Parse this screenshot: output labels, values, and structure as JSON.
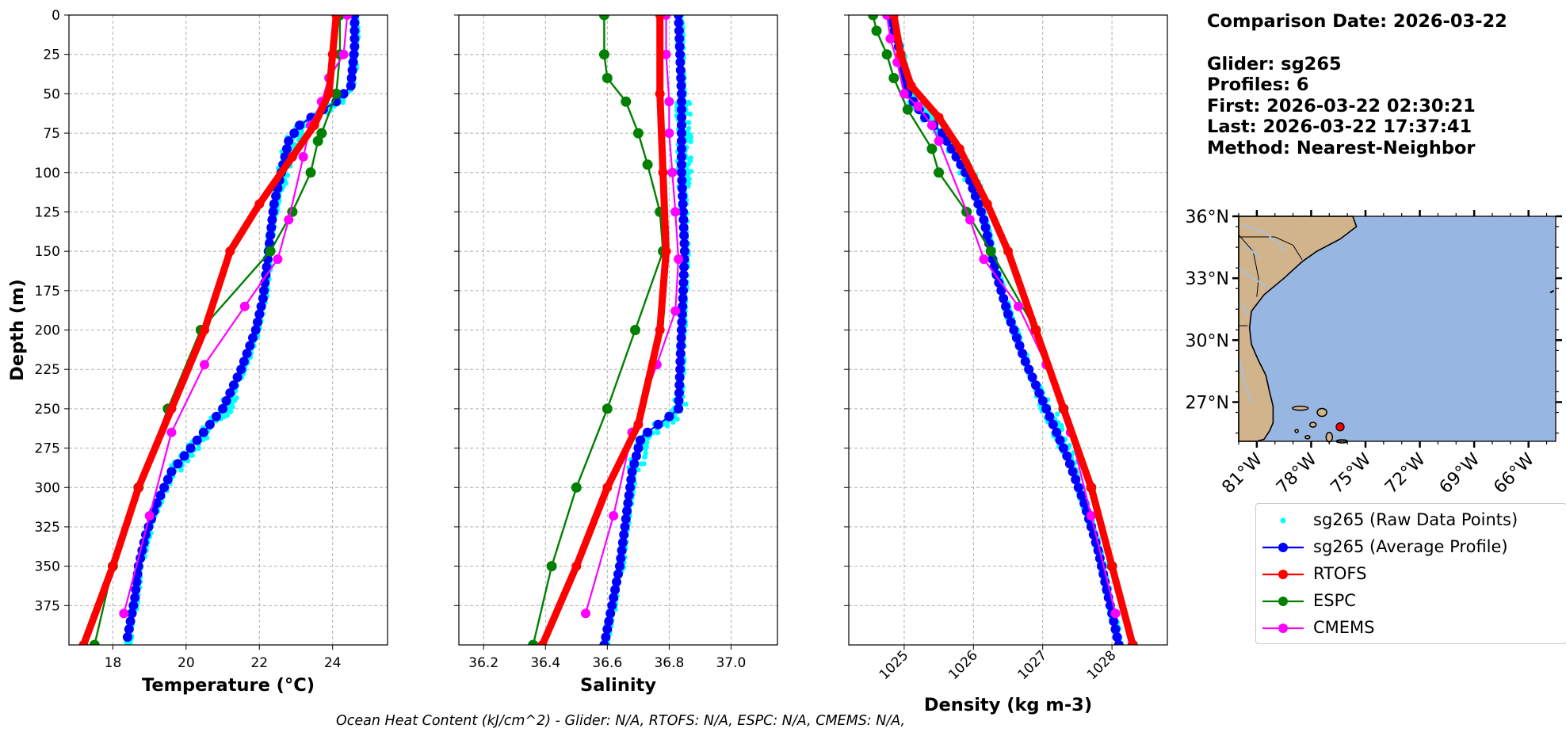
{
  "info": {
    "comparison_date": "Comparison Date: 2026-03-22",
    "glider": "Glider: sg265",
    "profiles": "Profiles: 6",
    "first": "First: 2026-03-22 02:30:21",
    "last": "Last: 2026-03-22 17:37:41",
    "method": "Method: Nearest-Neighbor"
  },
  "footer": "Ocean Heat Content (kJ/cm^2) - Glider: N/A,  RTOFS: N/A,  ESPC: N/A,  CMEMS: N/A,",
  "colors": {
    "raw": "#00ffff",
    "avg": "#0000ff",
    "rtofs": "#ff0000",
    "espc": "#008000",
    "cmems": "#ff00ff",
    "ocean": "#97b6e1",
    "land": "#d2b48c",
    "grid": "#b0b0b0"
  },
  "legend": [
    {
      "key": "raw",
      "label": "sg265 (Raw Data Points)"
    },
    {
      "key": "avg",
      "label": "sg265 (Average Profile)"
    },
    {
      "key": "rtofs",
      "label": "RTOFS"
    },
    {
      "key": "espc",
      "label": "ESPC"
    },
    {
      "key": "cmems",
      "label": "CMEMS"
    }
  ],
  "chart_data": [
    {
      "type": "line",
      "xlabel": "Temperature (°C)",
      "ylabel": "Depth (m)",
      "xlim": [
        16.8,
        25.5
      ],
      "ylim": [
        400,
        0
      ],
      "xticks": [
        18,
        20,
        22,
        24
      ],
      "yticks": [
        0,
        25,
        50,
        75,
        100,
        125,
        150,
        175,
        200,
        225,
        250,
        275,
        300,
        325,
        350,
        375
      ],
      "grid": true,
      "series": [
        {
          "key": "avg",
          "name": "sg265 (Average Profile)",
          "points": [
            [
              24.6,
              0
            ],
            [
              24.6,
              20
            ],
            [
              24.5,
              45
            ],
            [
              24.1,
              55
            ],
            [
              23.6,
              62
            ],
            [
              23.1,
              70
            ],
            [
              22.8,
              80
            ],
            [
              22.7,
              90
            ],
            [
              22.6,
              100
            ],
            [
              22.5,
              110
            ],
            [
              22.4,
              120
            ],
            [
              22.35,
              130
            ],
            [
              22.3,
              140
            ],
            [
              22.2,
              160
            ],
            [
              22.1,
              180
            ],
            [
              21.9,
              200
            ],
            [
              21.5,
              225
            ],
            [
              21.0,
              250
            ],
            [
              20.3,
              270
            ],
            [
              19.6,
              290
            ],
            [
              19.2,
              310
            ],
            [
              18.9,
              330
            ],
            [
              18.7,
              350
            ],
            [
              18.6,
              370
            ],
            [
              18.4,
              395
            ]
          ]
        },
        {
          "key": "rtofs",
          "name": "RTOFS",
          "points": [
            [
              24.1,
              0
            ],
            [
              24.0,
              25
            ],
            [
              23.9,
              50
            ],
            [
              23.5,
              70
            ],
            [
              22.9,
              90
            ],
            [
              22.0,
              120
            ],
            [
              21.2,
              150
            ],
            [
              20.5,
              200
            ],
            [
              19.6,
              250
            ],
            [
              18.7,
              300
            ],
            [
              18.0,
              350
            ],
            [
              17.2,
              400
            ]
          ]
        },
        {
          "key": "espc",
          "name": "ESPC",
          "points": [
            [
              24.2,
              0
            ],
            [
              24.2,
              25
            ],
            [
              24.1,
              50
            ],
            [
              23.7,
              75
            ],
            [
              23.6,
              80
            ],
            [
              23.4,
              100
            ],
            [
              22.9,
              125
            ],
            [
              22.3,
              150
            ],
            [
              20.4,
              200
            ],
            [
              19.5,
              250
            ],
            [
              18.7,
              300
            ],
            [
              18.0,
              350
            ],
            [
              17.5,
              400
            ]
          ]
        },
        {
          "key": "cmems",
          "name": "CMEMS",
          "points": [
            [
              24.4,
              0
            ],
            [
              24.3,
              25
            ],
            [
              23.9,
              40
            ],
            [
              23.7,
              55
            ],
            [
              23.4,
              70
            ],
            [
              23.2,
              90
            ],
            [
              22.8,
              130
            ],
            [
              22.5,
              155
            ],
            [
              21.6,
              185
            ],
            [
              20.5,
              222
            ],
            [
              19.6,
              265
            ],
            [
              19.0,
              318
            ],
            [
              18.3,
              380
            ]
          ]
        }
      ],
      "raw_key": "raw"
    },
    {
      "type": "line",
      "xlabel": "Salinity",
      "xlim": [
        36.12,
        37.15
      ],
      "ylim": [
        400,
        0
      ],
      "xticks": [
        36.2,
        36.4,
        36.6,
        36.8,
        37.0
      ],
      "xtick_labels": [
        "36.2",
        "36.4",
        "36.6",
        "36.8",
        "37.0"
      ],
      "grid": true,
      "series": [
        {
          "key": "avg",
          "name": "sg265 (Average Profile)",
          "points": [
            [
              36.83,
              0
            ],
            [
              36.84,
              50
            ],
            [
              36.84,
              100
            ],
            [
              36.85,
              150
            ],
            [
              36.84,
              200
            ],
            [
              36.83,
              250
            ],
            [
              36.8,
              255
            ],
            [
              36.75,
              262
            ],
            [
              36.71,
              268
            ],
            [
              36.68,
              290
            ],
            [
              36.66,
              320
            ],
            [
              36.64,
              350
            ],
            [
              36.61,
              380
            ],
            [
              36.59,
              400
            ]
          ]
        },
        {
          "key": "rtofs",
          "name": "RTOFS",
          "points": [
            [
              36.77,
              0
            ],
            [
              36.77,
              50
            ],
            [
              36.78,
              100
            ],
            [
              36.79,
              150
            ],
            [
              36.77,
              200
            ],
            [
              36.7,
              260
            ],
            [
              36.6,
              300
            ],
            [
              36.5,
              350
            ],
            [
              36.39,
              400
            ]
          ]
        },
        {
          "key": "espc",
          "name": "ESPC",
          "points": [
            [
              36.59,
              0
            ],
            [
              36.59,
              25
            ],
            [
              36.6,
              40
            ],
            [
              36.66,
              55
            ],
            [
              36.7,
              75
            ],
            [
              36.73,
              95
            ],
            [
              36.77,
              125
            ],
            [
              36.78,
              150
            ],
            [
              36.69,
              200
            ],
            [
              36.6,
              250
            ],
            [
              36.5,
              300
            ],
            [
              36.42,
              350
            ],
            [
              36.36,
              400
            ]
          ]
        },
        {
          "key": "cmems",
          "name": "CMEMS",
          "points": [
            [
              36.79,
              0
            ],
            [
              36.79,
              25
            ],
            [
              36.8,
              55
            ],
            [
              36.8,
              75
            ],
            [
              36.81,
              100
            ],
            [
              36.82,
              125
            ],
            [
              36.83,
              155
            ],
            [
              36.82,
              188
            ],
            [
              36.76,
              222
            ],
            [
              36.68,
              265
            ],
            [
              36.62,
              318
            ],
            [
              36.53,
              380
            ]
          ]
        }
      ],
      "raw_key": "raw"
    },
    {
      "type": "line",
      "xlabel": "Density (kg m-3)",
      "xlim": [
        1024.2,
        1028.8
      ],
      "ylim": [
        400,
        0
      ],
      "xticks": [
        1025,
        1026,
        1027,
        1028
      ],
      "grid": true,
      "series": [
        {
          "key": "avg",
          "name": "sg265 (Average Profile)",
          "points": [
            [
              1024.8,
              0
            ],
            [
              1024.95,
              25
            ],
            [
              1025.05,
              50
            ],
            [
              1025.3,
              65
            ],
            [
              1025.55,
              75
            ],
            [
              1025.75,
              90
            ],
            [
              1025.95,
              105
            ],
            [
              1026.15,
              130
            ],
            [
              1026.3,
              160
            ],
            [
              1026.5,
              190
            ],
            [
              1026.75,
              220
            ],
            [
              1027.05,
              250
            ],
            [
              1027.35,
              280
            ],
            [
              1027.6,
              310
            ],
            [
              1027.8,
              340
            ],
            [
              1027.95,
              370
            ],
            [
              1028.1,
              400
            ]
          ]
        },
        {
          "key": "rtofs",
          "name": "RTOFS",
          "points": [
            [
              1024.85,
              0
            ],
            [
              1024.95,
              25
            ],
            [
              1025.1,
              45
            ],
            [
              1025.5,
              65
            ],
            [
              1025.8,
              85
            ],
            [
              1026.2,
              120
            ],
            [
              1026.5,
              150
            ],
            [
              1026.9,
              200
            ],
            [
              1027.3,
              250
            ],
            [
              1027.7,
              300
            ],
            [
              1028.0,
              350
            ],
            [
              1028.3,
              400
            ]
          ]
        },
        {
          "key": "espc",
          "name": "ESPC",
          "points": [
            [
              1024.55,
              0
            ],
            [
              1024.6,
              10
            ],
            [
              1024.75,
              25
            ],
            [
              1024.85,
              40
            ],
            [
              1025.05,
              60
            ],
            [
              1025.4,
              85
            ],
            [
              1025.5,
              100
            ],
            [
              1025.9,
              125
            ],
            [
              1026.25,
              150
            ],
            [
              1026.9,
              200
            ],
            [
              1027.3,
              250
            ],
            [
              1027.7,
              300
            ],
            [
              1028.0,
              350
            ],
            [
              1028.3,
              400
            ]
          ]
        },
        {
          "key": "cmems",
          "name": "CMEMS",
          "points": [
            [
              1024.75,
              0
            ],
            [
              1024.8,
              15
            ],
            [
              1024.9,
              30
            ],
            [
              1025.0,
              50
            ],
            [
              1025.2,
              58
            ],
            [
              1025.4,
              70
            ],
            [
              1025.5,
              80
            ],
            [
              1025.95,
              130
            ],
            [
              1026.15,
              155
            ],
            [
              1026.65,
              185
            ],
            [
              1027.05,
              222
            ],
            [
              1027.4,
              265
            ],
            [
              1027.7,
              318
            ],
            [
              1028.05,
              380
            ]
          ]
        }
      ],
      "raw_key": "raw"
    }
  ],
  "map": {
    "lat_labels": [
      "36°N",
      "33°N",
      "30°N",
      "27°N"
    ],
    "lat_values": [
      36,
      33,
      30,
      27
    ],
    "lon_labels": [
      "81°W",
      "78°W",
      "75°W",
      "72°W",
      "69°W",
      "66°W"
    ],
    "lon_values": [
      -81,
      -78,
      -75,
      -72,
      -69,
      -66
    ],
    "lon_range": [
      -82,
      -64.5
    ],
    "lat_range": [
      25.1,
      36
    ],
    "glider_position": {
      "lon": -76.4,
      "lat": 25.8
    }
  }
}
